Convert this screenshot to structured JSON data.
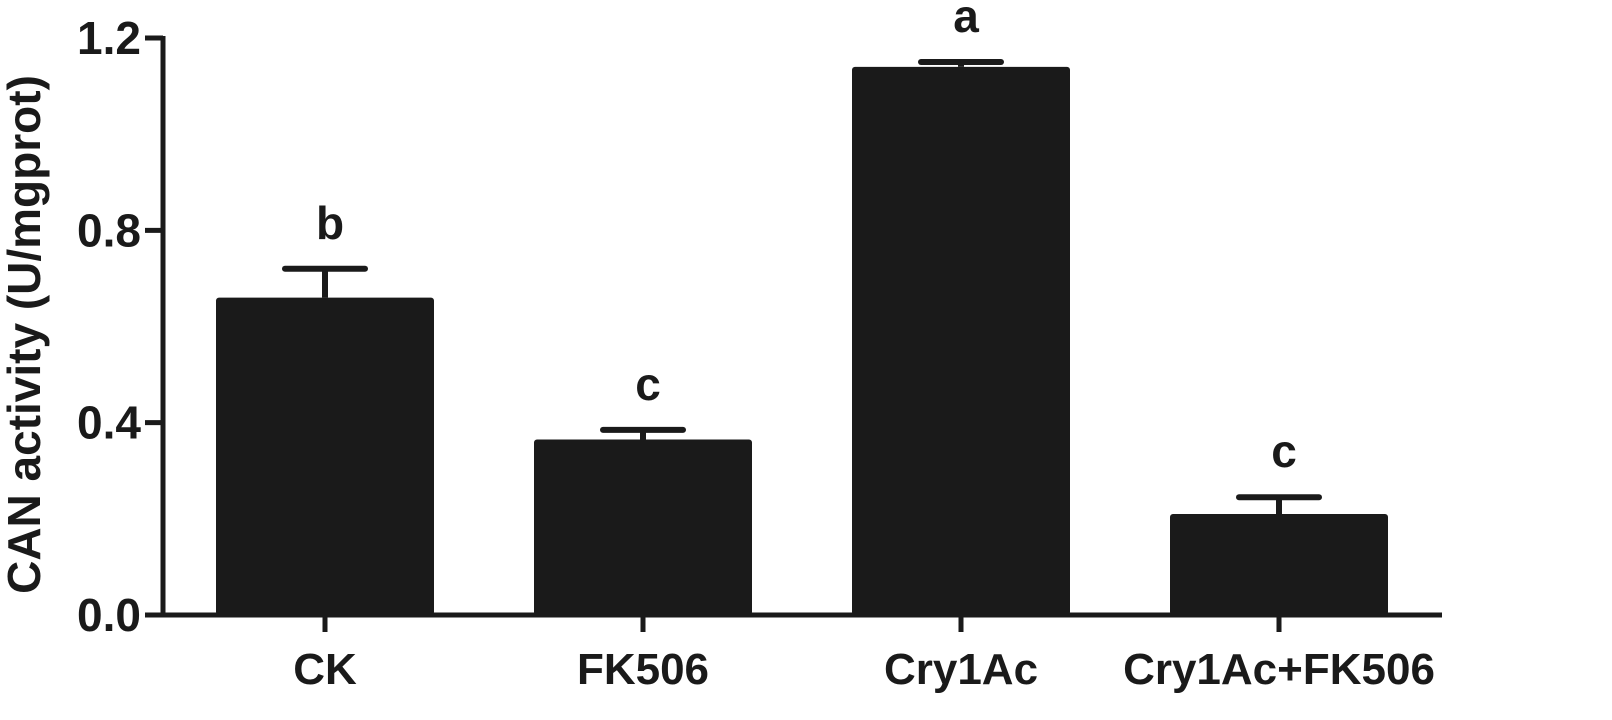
{
  "chart_data": {
    "type": "bar",
    "title": "",
    "xlabel": "",
    "ylabel": "CAN activity (U/mgprot)",
    "categories": [
      "CK",
      "FK506",
      "Cry1Ac",
      "Cry1Ac+FK506"
    ],
    "values": [
      0.66,
      0.365,
      1.14,
      0.21
    ],
    "errors": [
      0.06,
      0.02,
      0.01,
      0.035
    ],
    "significance": [
      "b",
      "c",
      "a",
      "c"
    ],
    "ylim": [
      0,
      1.2
    ],
    "yticks": [
      0.0,
      0.4,
      0.8,
      1.2
    ],
    "ytick_labels": [
      "0.0",
      "0.4",
      "0.8",
      "1.2"
    ],
    "grid": false,
    "legend": "none",
    "bar_color": "#1a1a1a",
    "axis_color": "#1a1a1a"
  }
}
